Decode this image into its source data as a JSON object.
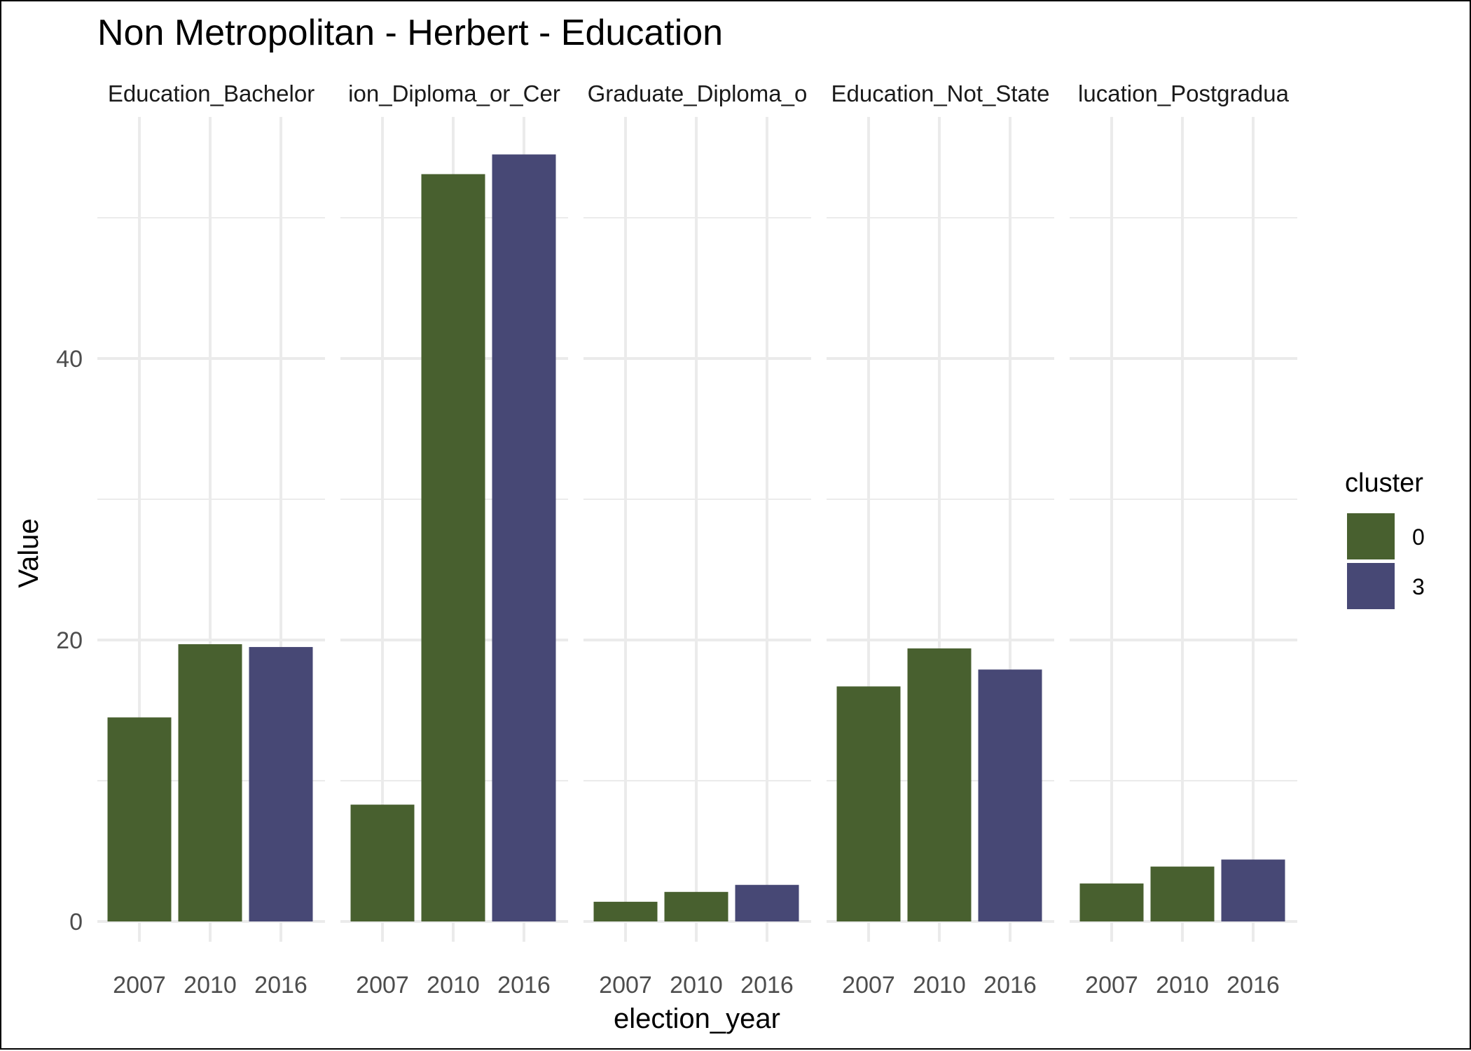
{
  "chart_data": {
    "type": "bar",
    "title": "Non Metropolitan - Herbert - Education",
    "xlabel": "election_year",
    "ylabel": "Value",
    "ylim": [
      0,
      57
    ],
    "yticks": [
      0,
      20,
      40
    ],
    "grid": true,
    "categories": [
      "2007",
      "2010",
      "2016"
    ],
    "facets": [
      {
        "label": "Education_Bachelor",
        "values": [
          14.5,
          19.7,
          19.5
        ],
        "clusters": [
          "0",
          "0",
          "3"
        ]
      },
      {
        "label": "ion_Diploma_or_Cer",
        "values": [
          8.3,
          53.1,
          54.5
        ],
        "clusters": [
          "0",
          "0",
          "3"
        ]
      },
      {
        "label": "Graduate_Diploma_o",
        "values": [
          1.4,
          2.1,
          2.6
        ],
        "clusters": [
          "0",
          "0",
          "3"
        ]
      },
      {
        "label": "Education_Not_State",
        "values": [
          16.7,
          19.4,
          17.9
        ],
        "clusters": [
          "0",
          "0",
          "3"
        ]
      },
      {
        "label": "lucation_Postgradua",
        "values": [
          2.7,
          3.9,
          4.4
        ],
        "clusters": [
          "0",
          "0",
          "3"
        ]
      }
    ],
    "legend": {
      "title": "cluster",
      "position": "right",
      "entries": [
        {
          "label": "0",
          "color": "#48602f"
        },
        {
          "label": "3",
          "color": "#474875"
        }
      ]
    }
  }
}
